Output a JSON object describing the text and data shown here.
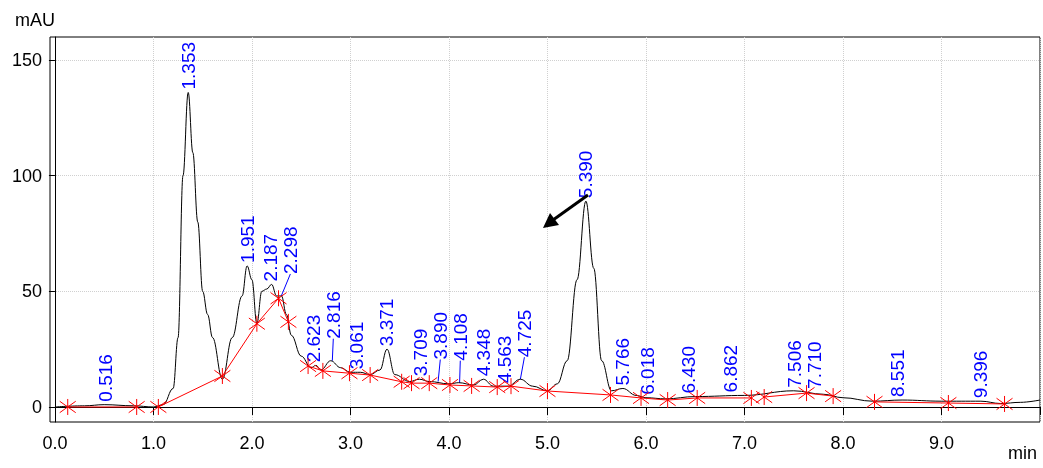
{
  "chart_data": {
    "type": "line",
    "xlabel": "min",
    "ylabel": "mAU",
    "xlim": [
      -0.05,
      10.0
    ],
    "xticks": [
      {
        "value": 0,
        "label": "0.0"
      },
      {
        "value": 1,
        "label": "1.0"
      },
      {
        "value": 2,
        "label": "2.0"
      },
      {
        "value": 3,
        "label": "3.0"
      },
      {
        "value": 4,
        "label": "4.0"
      },
      {
        "value": 5,
        "label": "5.0"
      },
      {
        "value": 6,
        "label": "6.0"
      },
      {
        "value": 7,
        "label": "7.0"
      },
      {
        "value": 8,
        "label": "8.0"
      },
      {
        "value": 9,
        "label": "9.0"
      },
      {
        "value": 10,
        "label": null
      }
    ],
    "ylim": [
      -6.5,
      160
    ],
    "yticks": [
      0,
      50,
      100,
      150
    ],
    "grid": true,
    "series": [
      {
        "color": "#000000",
        "marker": "none",
        "x": [
          0.0,
          0.3,
          0.5,
          0.8,
          1.0,
          1.1,
          1.2,
          1.25,
          1.3,
          1.353,
          1.4,
          1.45,
          1.5,
          1.55,
          1.6,
          1.7,
          1.8,
          1.9,
          1.951,
          2.0,
          2.05,
          2.1,
          2.15,
          2.2,
          2.25,
          2.3,
          2.35,
          2.4,
          2.5,
          2.6,
          2.65,
          2.7,
          2.8,
          2.9,
          3.0,
          3.1,
          3.2,
          3.3,
          3.371,
          3.45,
          3.6,
          3.7,
          3.8,
          4.0,
          4.1,
          4.25,
          4.35,
          4.45,
          4.6,
          4.725,
          4.85,
          5.0,
          5.1,
          5.2,
          5.3,
          5.39,
          5.47,
          5.55,
          5.65,
          5.766,
          5.9,
          6.0,
          6.2,
          6.5,
          7.0,
          7.5,
          7.8,
          8.0,
          8.3,
          8.6,
          9.0,
          9.4,
          9.6,
          9.8,
          10.0
        ],
        "values": [
          0,
          0.5,
          1,
          0.5,
          0,
          1,
          8,
          30,
          100,
          136,
          110,
          80,
          50,
          40,
          30,
          12,
          30,
          48,
          61,
          55,
          36,
          50,
          51,
          53,
          48,
          48,
          40,
          31,
          22,
          17,
          18,
          16,
          20,
          17,
          15,
          15,
          14,
          16,
          25,
          14,
          11,
          12,
          11,
          10,
          10.5,
          9.5,
          12,
          9,
          9,
          12,
          9,
          7,
          10,
          20,
          55,
          89,
          60,
          20,
          7,
          8,
          5,
          4,
          3.5,
          4.5,
          5,
          7,
          5.5,
          4,
          2.5,
          3,
          2.5,
          2.5,
          1.5,
          2,
          3
        ]
      },
      {
        "color": "#ff0000",
        "marker": "cross",
        "x": [
          0.13,
          0.83,
          0.94,
          1.05,
          1.7,
          2.05,
          2.27,
          2.37,
          2.47,
          2.57,
          2.72,
          2.99,
          3.2,
          3.52,
          3.62,
          3.8,
          4.01,
          4.23,
          4.49,
          4.63,
          5.0,
          5.64,
          5.95,
          6.22,
          6.52,
          7.07,
          7.13,
          7.2,
          7.63,
          7.9,
          8.1,
          8.32,
          9.07,
          9.64
        ],
        "values": [
          0,
          0,
          null,
          0,
          13.4,
          36,
          47,
          36.8,
          null,
          17.7,
          15.6,
          14.6,
          13.8,
          10.9,
          10.3,
          10.3,
          9.5,
          9.1,
          8.6,
          9,
          6.9,
          5.2,
          3.9,
          3.0,
          3.9,
          3.9,
          null,
          4.3,
          6,
          4.7,
          null,
          2.2,
          1.7,
          1.3
        ]
      }
    ],
    "annotations": [
      {
        "text": "0.516",
        "x": 0.516,
        "y": 1
      },
      {
        "text": "1.353",
        "x": 1.353,
        "y": 136
      },
      {
        "text": "1.951",
        "x": 1.951,
        "y": 61
      },
      {
        "text": "2.187",
        "x": 2.187,
        "y": 53
      },
      {
        "text": "2.298",
        "x": 2.298,
        "y": 48
      },
      {
        "text": "2.623",
        "x": 2.623,
        "y": 18
      },
      {
        "text": "2.816",
        "x": 2.816,
        "y": 20
      },
      {
        "text": "3.061",
        "x": 3.061,
        "y": 15
      },
      {
        "text": "3.371",
        "x": 3.371,
        "y": 25
      },
      {
        "text": "3.709",
        "x": 3.709,
        "y": 12
      },
      {
        "text": "3.890",
        "x": 3.89,
        "y": 11
      },
      {
        "text": "4.108",
        "x": 4.108,
        "y": 10.5
      },
      {
        "text": "4.348",
        "x": 4.348,
        "y": 12
      },
      {
        "text": "4.563",
        "x": 4.563,
        "y": 9
      },
      {
        "text": "4.725",
        "x": 4.725,
        "y": 12
      },
      {
        "text": "5.390",
        "x": 5.39,
        "y": 89
      },
      {
        "text": "5.766",
        "x": 5.766,
        "y": 8
      },
      {
        "text": "6.018",
        "x": 6.018,
        "y": 4
      },
      {
        "text": "6.430",
        "x": 6.43,
        "y": 4.5
      },
      {
        "text": "6.862",
        "x": 6.862,
        "y": 5
      },
      {
        "text": "7.506",
        "x": 7.506,
        "y": 7
      },
      {
        "text": "7.710",
        "x": 7.71,
        "y": 6.5
      },
      {
        "text": "8.551",
        "x": 8.551,
        "y": 3
      },
      {
        "text": "9.396",
        "x": 9.396,
        "y": 2.5
      }
    ]
  }
}
